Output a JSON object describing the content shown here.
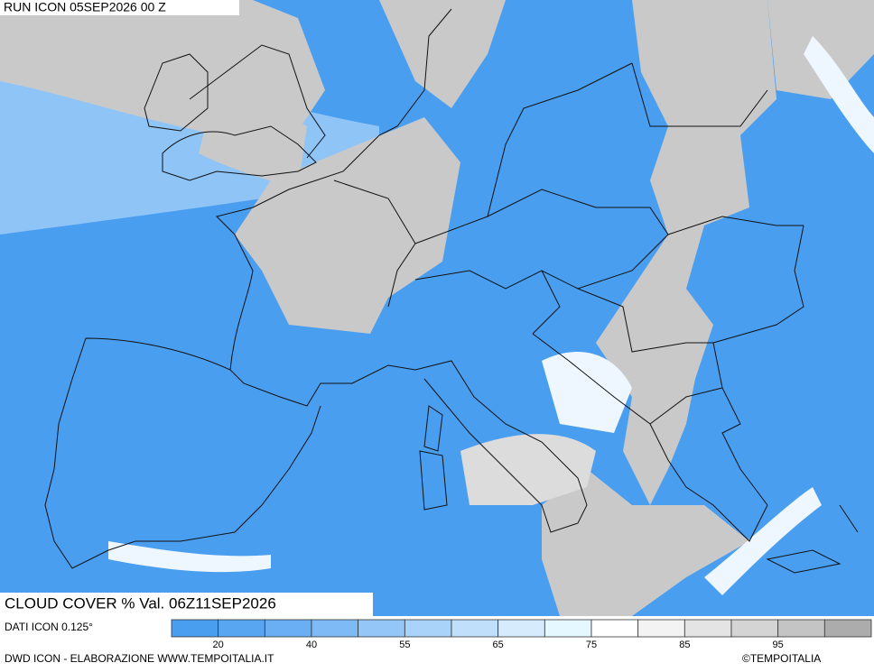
{
  "header": {
    "run": "RUN ICON 05SEP2026 00 Z",
    "product": "CLOUD COVER % Val. 06Z11SEP2026"
  },
  "legend": {
    "source": "DATI ICON 0.125°",
    "colors": [
      "#4a9ef0",
      "#58a5f2",
      "#6aaff4",
      "#7ebaf6",
      "#94c6f7",
      "#aad3f9",
      "#c0dffb",
      "#d6ebfc",
      "#e6f8ff",
      "#ffffff",
      "#f3f3f3",
      "#e4e4e4",
      "#d4d4d4",
      "#c4c4c4",
      "#acacac"
    ],
    "labels": [
      "20",
      "40",
      "55",
      "65",
      "75",
      "85",
      "95"
    ]
  },
  "footer": {
    "credit": "DWD ICON - ELABORAZIONE WWW.TEMPOITALIA.IT",
    "copyright": "©TEMPOITALIA"
  }
}
